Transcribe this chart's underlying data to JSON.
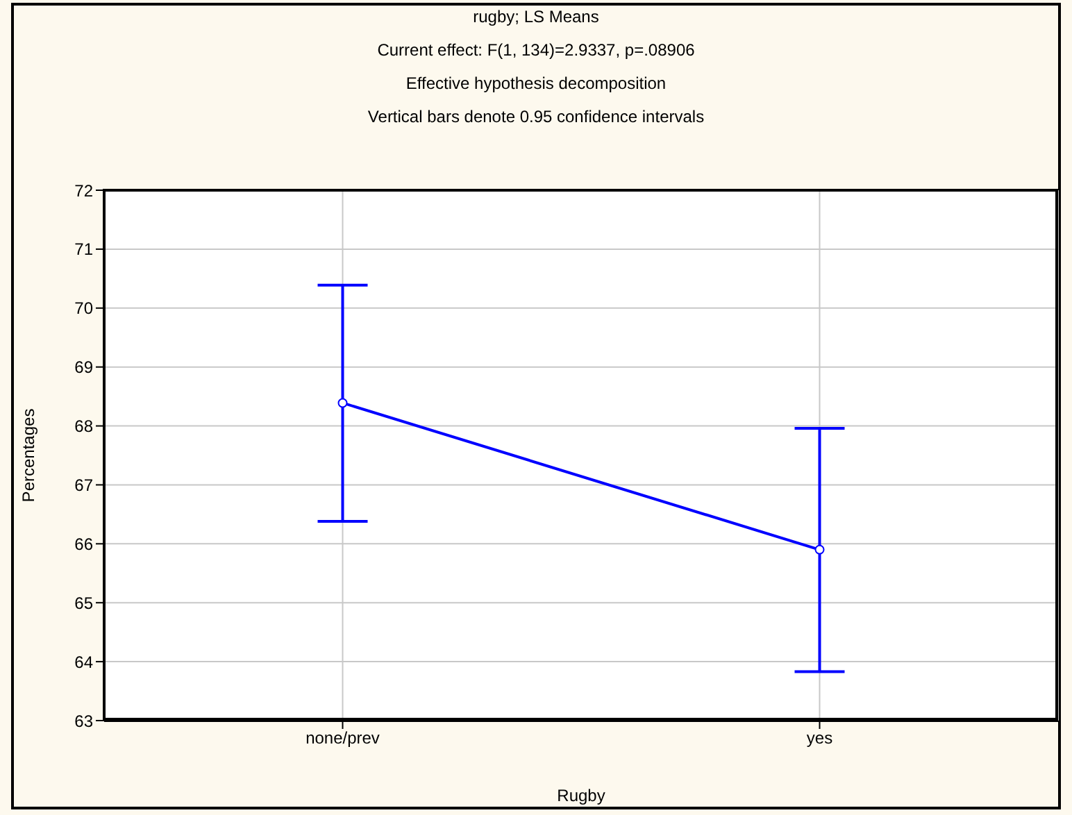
{
  "chart_data": {
    "type": "line",
    "title": "rugby; LS Means",
    "subtitle": "Current effect: F(1, 134)=2.9337, p=.08906",
    "annotations": [
      "Effective hypothesis decomposition",
      "Vertical bars denote 0.95 confidence intervals"
    ],
    "xlabel": "Rugby",
    "ylabel": "Percentages",
    "categories": [
      "none/prev",
      "yes"
    ],
    "values": [
      68.39,
      65.9
    ],
    "errors": [
      [
        66.38,
        70.39
      ],
      [
        63.83,
        67.96
      ]
    ],
    "color": "#0000ff",
    "ylim": [
      63,
      72
    ],
    "yticks": [
      63,
      64,
      65,
      66,
      67,
      68,
      69,
      70,
      71,
      72
    ],
    "grid": true,
    "marker": "circle",
    "line_style": "solid"
  }
}
